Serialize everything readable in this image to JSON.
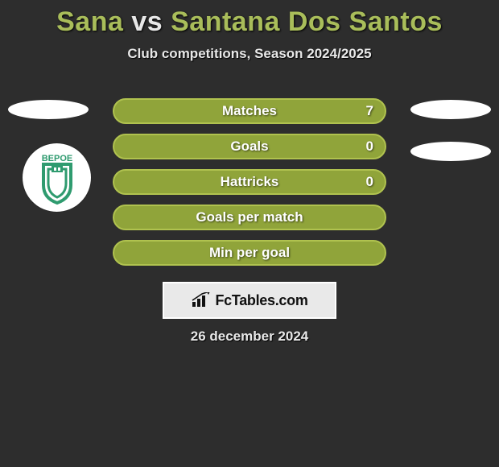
{
  "header": {
    "player1": "Sana",
    "vs": "vs",
    "player2": "Santana Dos Santos",
    "subtitle": "Club competitions, Season 2024/2025"
  },
  "badge": {
    "label": "BEPOE",
    "text_color": "#2f9b6f",
    "shield_color": "#2f9b6f"
  },
  "stats": {
    "bar_border_color": "#b0c24f",
    "bar_fill_color": "#90a43a",
    "rows": [
      {
        "label": "Matches",
        "value": "7",
        "show_value": true
      },
      {
        "label": "Goals",
        "value": "0",
        "show_value": true
      },
      {
        "label": "Hattricks",
        "value": "0",
        "show_value": true
      },
      {
        "label": "Goals per match",
        "value": "",
        "show_value": false
      },
      {
        "label": "Min per goal",
        "value": "",
        "show_value": false
      }
    ]
  },
  "brand": {
    "text": "FcTables.com",
    "box_border": "#ffffff",
    "box_bg": "#e9e9e9"
  },
  "footer": {
    "date": "26 december 2024"
  },
  "colors": {
    "background": "#2d2d2d",
    "title_accent": "#a9bd5a",
    "title_vs": "#e8e8e8",
    "text_light": "#e8e8e8"
  }
}
